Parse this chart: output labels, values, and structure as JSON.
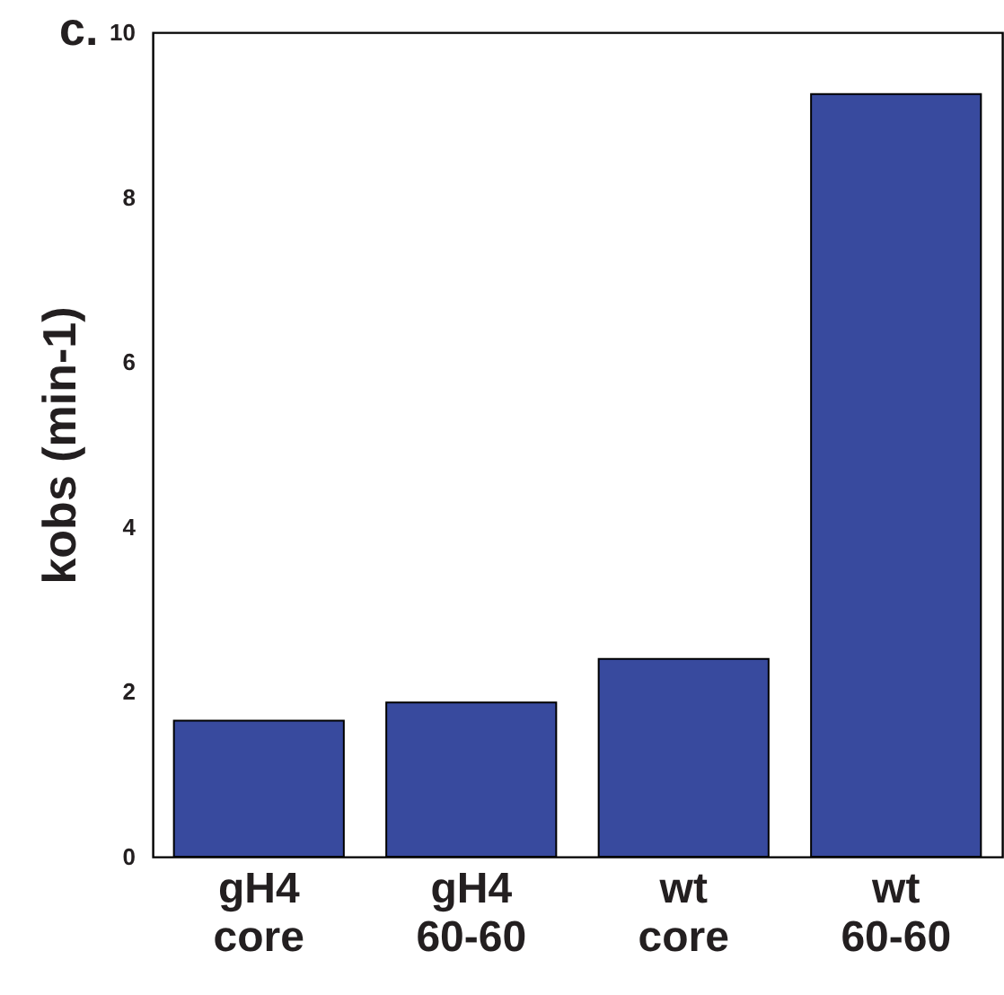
{
  "chart_data": {
    "type": "bar",
    "title": "c.",
    "ylabel": "kobs (min-1)",
    "categories": [
      "gH4\ncore",
      "gH4\n60-60",
      "wt\ncore",
      "wt\n60-60"
    ],
    "values": [
      1.65,
      1.87,
      2.4,
      9.25
    ],
    "color": "#384a9e",
    "ylim": [
      0,
      10
    ],
    "yticks": [
      0,
      2,
      4,
      6,
      8,
      10
    ],
    "grid": false
  }
}
